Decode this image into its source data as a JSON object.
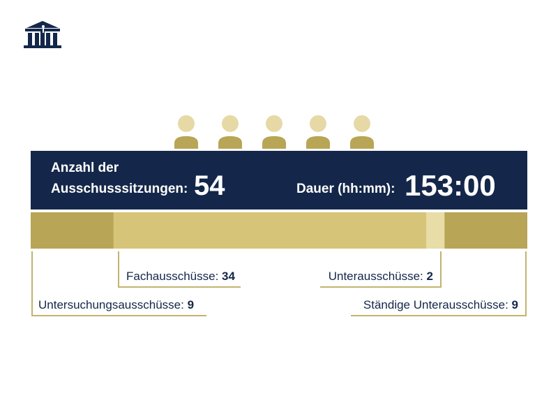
{
  "colors": {
    "navy": "#14274a",
    "olive": "#b8a555",
    "gold": "#d6c478",
    "pale": "#e8dca7",
    "person": "#e6d9a6",
    "person_body": "#b8a555"
  },
  "logo": {
    "icon": "parliament-building-icon"
  },
  "headline": {
    "sessions_label_line1": "Anzahl der",
    "sessions_label_line2": "Ausschusssitzungen:",
    "sessions_value": "54",
    "duration_label": "Dauer (hh:mm):",
    "duration_value": "153:00"
  },
  "chart_data": {
    "type": "bar",
    "orientation": "horizontal",
    "stacked": true,
    "total": 54,
    "categories": [
      "Untersuchungsausschüsse",
      "Fachausschüsse",
      "Unterausschüsse",
      "Ständige Unterausschüsse"
    ],
    "values": [
      9,
      34,
      2,
      9
    ],
    "series_colors": [
      "#b8a555",
      "#d6c478",
      "#e8dca7",
      "#b8a555"
    ],
    "legend": [
      {
        "label": "Untersuchungsausschüsse:",
        "value": "9"
      },
      {
        "label": "Fachausschüsse:",
        "value": "34"
      },
      {
        "label": "Unterausschüsse:",
        "value": "2"
      },
      {
        "label": "Ständige Unterausschüsse:",
        "value": "9"
      }
    ]
  }
}
